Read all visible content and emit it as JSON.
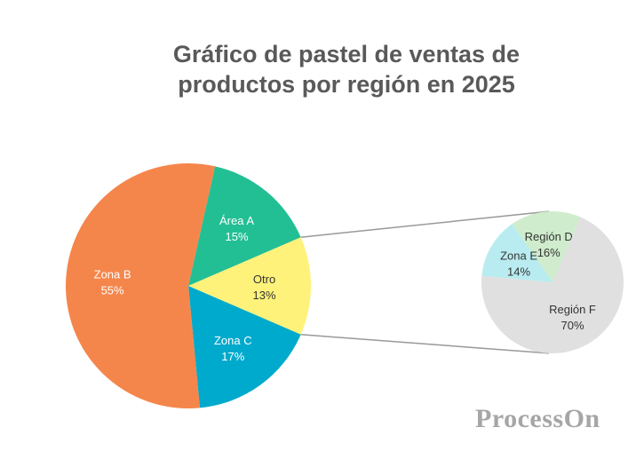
{
  "chart_data": {
    "type": "pie",
    "title_line1": "Gráfico de pastel de ventas de",
    "title_line2": "productos por región en 2025",
    "main_pie": {
      "slices": [
        {
          "name": "Área A",
          "value": 15,
          "label": "15%",
          "color": "#22bf95",
          "text_color": "#ffffff"
        },
        {
          "name": "Otro",
          "value": 13,
          "label": "13%",
          "color": "#fff27a",
          "text_color": "#333333"
        },
        {
          "name": "Zona C",
          "value": 17,
          "label": "17%",
          "color": "#00aacc",
          "text_color": "#ffffff"
        },
        {
          "name": "Zona B",
          "value": 55,
          "label": "55%",
          "color": "#f5864b",
          "text_color": "#ffffff"
        }
      ]
    },
    "sub_pie": {
      "parent": "Otro",
      "slices": [
        {
          "name": "Región D",
          "value": 16,
          "label": "16%",
          "color": "#cfeccc",
          "text_color": "#333333"
        },
        {
          "name": "Región F",
          "value": 70,
          "label": "70%",
          "color": "#e0e0e0",
          "text_color": "#333333"
        },
        {
          "name": "Zona E",
          "value": 14,
          "label": "14%",
          "color": "#b9ecf0",
          "text_color": "#333333"
        }
      ]
    },
    "connector_color": "#999999"
  },
  "watermark": "ProcessOn"
}
